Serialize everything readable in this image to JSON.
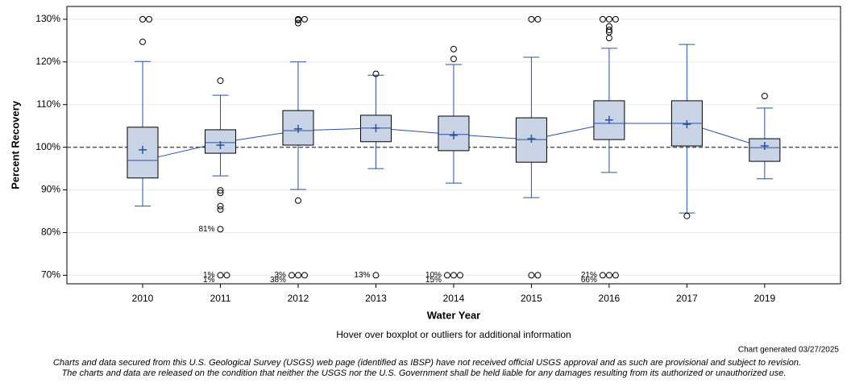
{
  "chart_data": {
    "type": "boxplot",
    "xlabel": "Water Year",
    "ylabel": "Percent Recovery",
    "note": "Hover over boxplot or outliers for additional information",
    "generated": "Chart generated 03/27/2025",
    "disclaimer": [
      "Charts and data secured from this U.S. Geological Survey (USGS) web page (identified as IBSP) have not received official USGS approval and as such are provisional and subject to revision.",
      "The charts and data are released on the condition that neither the USGS nor the U.S. Government shall be held liable for any damages resulting from its authorized or unauthorized use."
    ],
    "ylim": [
      68,
      133
    ],
    "yticks": [
      {
        "value": 70,
        "label": "70%"
      },
      {
        "value": 80,
        "label": "80%"
      },
      {
        "value": 90,
        "label": "90%"
      },
      {
        "value": 100,
        "label": "100%"
      },
      {
        "value": 110,
        "label": "110%"
      },
      {
        "value": 120,
        "label": "120%"
      },
      {
        "value": 130,
        "label": "130%"
      }
    ],
    "reference_line": 100,
    "grid": true,
    "box_color": "#c9d5e7",
    "line_color": "#2a50a0",
    "categories": [
      "2010",
      "2011",
      "2012",
      "2013",
      "2014",
      "2015",
      "2016",
      "2017",
      "2019"
    ],
    "boxes": [
      {
        "whisker_low": 86.2,
        "q1": 92.8,
        "median": 96.9,
        "q3": 104.7,
        "whisker_high": 120.1,
        "mean": 99.4,
        "outliers": [
          130,
          130,
          124.7
        ],
        "outlier_labels": []
      },
      {
        "whisker_low": 93.3,
        "q1": 98.6,
        "median": 101.1,
        "q3": 104.1,
        "whisker_high": 112.2,
        "mean": 100.5,
        "outliers": [
          115.6,
          89.9,
          89.3,
          86.2,
          85.4,
          80.8,
          70,
          70
        ],
        "outlier_labels": [
          {
            "value": 80.8,
            "label": "81%"
          },
          {
            "value": 70,
            "label": "1%"
          },
          {
            "value": 70,
            "label": "1%"
          }
        ]
      },
      {
        "whisker_low": 90.1,
        "q1": 100.5,
        "median": 103.9,
        "q3": 108.6,
        "whisker_high": 120.0,
        "mean": 104.3,
        "outliers": [
          130,
          130,
          129.8,
          129.1,
          87.5,
          70,
          70,
          70
        ],
        "outlier_labels": [
          {
            "value": 70,
            "label": "3%"
          },
          {
            "value": 70,
            "label": "38%"
          }
        ]
      },
      {
        "whisker_low": 95.0,
        "q1": 101.3,
        "median": 104.5,
        "q3": 107.5,
        "whisker_high": 116.9,
        "mean": 104.5,
        "outliers": [
          117.2,
          70
        ],
        "outlier_labels": [
          {
            "value": 70,
            "label": "13%"
          }
        ]
      },
      {
        "whisker_low": 91.6,
        "q1": 99.2,
        "median": 103.0,
        "q3": 107.3,
        "whisker_high": 119.4,
        "mean": 102.8,
        "outliers": [
          123.0,
          120.7,
          70,
          70,
          70
        ],
        "outlier_labels": [
          {
            "value": 70,
            "label": "10%"
          },
          {
            "value": 70,
            "label": "15%"
          }
        ]
      },
      {
        "whisker_low": 88.2,
        "q1": 96.5,
        "median": 101.8,
        "q3": 106.9,
        "whisker_high": 121.1,
        "mean": 102.0,
        "outliers": [
          130,
          130,
          70,
          70
        ],
        "outlier_labels": []
      },
      {
        "whisker_low": 94.1,
        "q1": 101.8,
        "median": 105.6,
        "q3": 110.9,
        "whisker_high": 123.2,
        "mean": 106.4,
        "outliers": [
          130,
          130,
          130,
          128.3,
          127.5,
          127.0,
          125.6,
          70,
          70,
          70
        ],
        "outlier_labels": [
          {
            "value": 70,
            "label": "21%"
          },
          {
            "value": 70,
            "label": "66%"
          }
        ]
      },
      {
        "whisker_low": 84.6,
        "q1": 100.3,
        "median": 105.6,
        "q3": 110.9,
        "whisker_high": 124.1,
        "mean": 105.4,
        "outliers": [
          83.9
        ],
        "outlier_labels": []
      },
      {
        "whisker_low": 92.6,
        "q1": 96.7,
        "median": 99.9,
        "q3": 102.0,
        "whisker_high": 109.2,
        "mean": 100.3,
        "outliers": [
          112.0
        ],
        "outlier_labels": []
      }
    ]
  }
}
